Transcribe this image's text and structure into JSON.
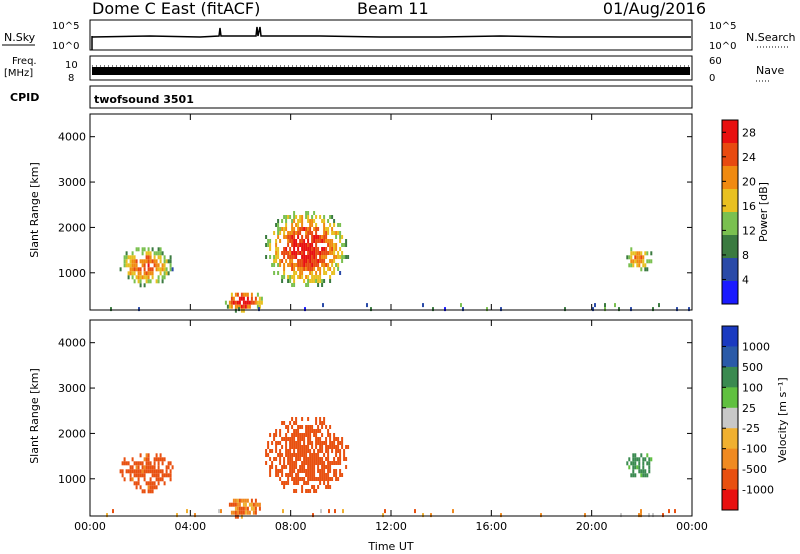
{
  "header": {
    "title": "Dome C East (fitACF)",
    "beam": "Beam 11",
    "date": "01/Aug/2016"
  },
  "params_panel": {
    "nsky_label": "N.Sky",
    "nsearch_label": "N.Search",
    "nsky_top_tick": "10^5",
    "nsky_bottom_tick": "10^0",
    "freq_label": "Freq.",
    "freq_unit": "[MHz]",
    "freq_ticks": [
      "10",
      "8"
    ],
    "nave_label": "Nave",
    "nave_ticks": [
      "60",
      "0"
    ],
    "cpid_label": "CPID",
    "cpid_value": "twofsound 3501"
  },
  "colors": {
    "power_scale": [
      "#1a1aff",
      "#2a4aa8",
      "#3a7a40",
      "#7ac050",
      "#e8c020",
      "#f08a10",
      "#e84a10",
      "#e81010"
    ],
    "velocity_scale": [
      "#e81010",
      "#e85010",
      "#f08a20",
      "#f0b030",
      "#c8c8c8",
      "#60c040",
      "#3a8a50",
      "#2a5aa8",
      "#1a3ac0"
    ],
    "velocity_dominant": "#f08a20"
  },
  "chart_data": [
    {
      "type": "heatmap",
      "name": "power",
      "ylabel": "Slant Range [km]",
      "ylim": [
        180,
        4500
      ],
      "yticks": [
        "1000",
        "2000",
        "3000",
        "4000"
      ],
      "xlim_hours": [
        0,
        24
      ],
      "xticks": [
        "00:00",
        "04:00",
        "08:00",
        "12:00",
        "16:00",
        "20:00",
        "00:00"
      ],
      "colorbar": {
        "label": "Power [dB]",
        "ticks": [
          "4",
          "8",
          "12",
          "16",
          "20",
          "24",
          "28"
        ],
        "range": [
          0,
          30
        ]
      },
      "echo_regions": [
        {
          "t_start": 1.1,
          "t_end": 3.3,
          "r_low": 750,
          "r_high": 1650,
          "peak_db": 24
        },
        {
          "t_start": 5.3,
          "t_end": 6.9,
          "r_low": 180,
          "r_high": 650,
          "peak_db": 30
        },
        {
          "t_start": 6.9,
          "t_end": 10.3,
          "r_low": 700,
          "r_high": 2450,
          "peak_db": 28
        },
        {
          "t_start": 21.3,
          "t_end": 22.4,
          "r_low": 1050,
          "r_high": 1650,
          "peak_db": 22
        },
        {
          "t_start": 0.0,
          "t_end": 24.0,
          "r_low": 180,
          "r_high": 420,
          "peak_db": 8
        }
      ]
    },
    {
      "type": "heatmap",
      "name": "velocity",
      "ylabel": "Slant Range [km]",
      "ylim": [
        180,
        4500
      ],
      "yticks": [
        "1000",
        "2000",
        "3000",
        "4000"
      ],
      "xlim_hours": [
        0,
        24
      ],
      "xticks": [
        "00:00",
        "04:00",
        "08:00",
        "12:00",
        "16:00",
        "20:00",
        "00:00"
      ],
      "xlabel": "Time UT",
      "colorbar": {
        "label": "Velocity [m s⁻¹]",
        "ticks": [
          "1000",
          "500",
          "100",
          "25",
          "-25",
          "-100",
          "-500",
          "-1000"
        ]
      },
      "echo_regions": [
        {
          "t_start": 1.1,
          "t_end": 3.3,
          "r_low": 750,
          "r_high": 1650,
          "velocity": -150
        },
        {
          "t_start": 5.3,
          "t_end": 6.9,
          "r_low": 180,
          "r_high": 650,
          "velocity": -100
        },
        {
          "t_start": 6.9,
          "t_end": 10.3,
          "r_low": 700,
          "r_high": 2450,
          "velocity": -200
        },
        {
          "t_start": 21.3,
          "t_end": 22.4,
          "r_low": 1050,
          "r_high": 1650,
          "velocity": 150
        },
        {
          "t_start": 0.0,
          "t_end": 24.0,
          "r_low": 180,
          "r_high": 420,
          "velocity": -60
        }
      ]
    }
  ]
}
